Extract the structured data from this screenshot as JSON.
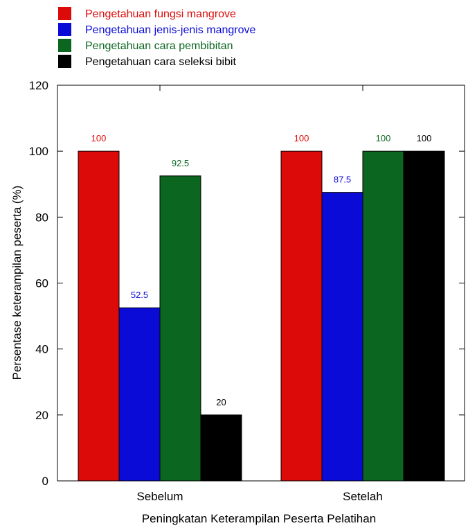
{
  "chart_data": {
    "type": "bar",
    "categories": [
      "Sebelum",
      "Setelah"
    ],
    "series": [
      {
        "name": "Pengetahuan fungsi mangrove",
        "color": "#dd0a0a",
        "values": [
          100,
          100
        ],
        "labels": [
          "100",
          "100"
        ]
      },
      {
        "name": "Pengetahuan jenis-jenis mangrove",
        "color": "#0b0bd8",
        "values": [
          52.5,
          87.5
        ],
        "labels": [
          "52.5",
          "87.5"
        ]
      },
      {
        "name": "Pengetahuan cara pembibitan",
        "color": "#0b6620",
        "values": [
          92.5,
          100
        ],
        "labels": [
          "92.5",
          "100"
        ]
      },
      {
        "name": "Pengetahuan cara seleksi bibit",
        "color": "#000000",
        "values": [
          null,
          100
        ],
        "labels": [
          "",
          "100"
        ]
      }
    ],
    "extra_labels": [
      {
        "category": 0,
        "series": 3,
        "text": "20",
        "value": 20
      }
    ],
    "title": "",
    "xlabel": "Peningkatan Keterampilan Peserta Pelatihan",
    "ylabel": "Persentase keterampilan peserta (%)",
    "ylim": [
      0,
      120
    ],
    "yticks": [
      "0",
      "20",
      "40",
      "60",
      "80",
      "100",
      "120"
    ],
    "legend_position": "top-left",
    "grid": false
  }
}
